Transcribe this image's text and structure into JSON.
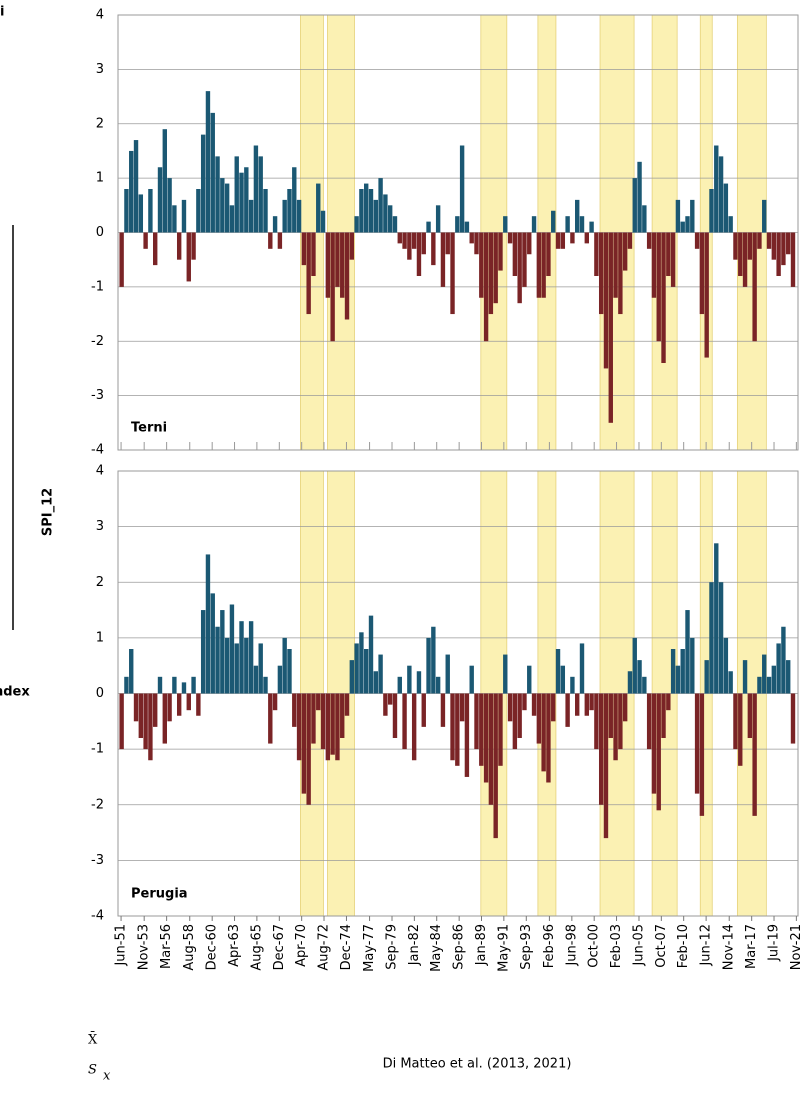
{
  "chart_data": [
    {
      "type": "bar",
      "title": "Terni",
      "pos_color": "#1b5873",
      "neg_color": "#7a2426",
      "shade_color": "#fbf1b3",
      "ylim": [
        -4,
        4
      ],
      "yticks": [
        -4,
        -3,
        -2,
        -1,
        0,
        1,
        2,
        3,
        4
      ],
      "xlim": [
        1951.1,
        2022.0
      ],
      "grid": true,
      "shaded_periods": [
        [
          1970.12,
          1972.52
        ],
        [
          1972.94,
          1975.76
        ],
        [
          1988.93,
          1991.64
        ],
        [
          1994.88,
          1996.76
        ],
        [
          2001.36,
          2004.91
        ],
        [
          2006.79,
          2009.4
        ],
        [
          2011.81,
          2013.06
        ],
        [
          2015.68,
          2018.7
        ]
      ],
      "x": [
        1951.5,
        1952.0,
        1952.5,
        1953.0,
        1953.5,
        1954.0,
        1954.5,
        1955.0,
        1955.5,
        1956.0,
        1956.5,
        1957.0,
        1957.5,
        1958.0,
        1958.5,
        1959.0,
        1959.5,
        1960.0,
        1960.5,
        1961.0,
        1961.5,
        1962.0,
        1962.5,
        1963.0,
        1963.5,
        1964.0,
        1964.5,
        1965.0,
        1965.5,
        1966.0,
        1966.5,
        1967.0,
        1967.5,
        1968.0,
        1968.5,
        1969.0,
        1969.5,
        1970.0,
        1970.5,
        1971.0,
        1971.5,
        1972.0,
        1972.5,
        1973.0,
        1973.5,
        1974.0,
        1974.5,
        1975.0,
        1975.5,
        1976.0,
        1976.5,
        1977.0,
        1977.5,
        1978.0,
        1978.5,
        1979.0,
        1979.5,
        1980.0,
        1980.5,
        1981.0,
        1981.5,
        1982.0,
        1982.5,
        1983.0,
        1983.5,
        1984.0,
        1984.5,
        1985.0,
        1985.5,
        1986.0,
        1986.5,
        1987.0,
        1987.5,
        1988.0,
        1988.5,
        1989.0,
        1989.5,
        1990.0,
        1990.5,
        1991.0,
        1991.5,
        1992.0,
        1992.5,
        1993.0,
        1993.5,
        1994.0,
        1994.5,
        1995.0,
        1995.5,
        1996.0,
        1996.5,
        1997.0,
        1997.5,
        1998.0,
        1998.5,
        1999.0,
        1999.5,
        2000.0,
        2000.5,
        2001.0,
        2001.5,
        2002.0,
        2002.5,
        2003.0,
        2003.5,
        2004.0,
        2004.5,
        2005.0,
        2005.5,
        2006.0,
        2006.5,
        2007.0,
        2007.5,
        2008.0,
        2008.5,
        2009.0,
        2009.5,
        2010.0,
        2010.5,
        2011.0,
        2011.5,
        2012.0,
        2012.5,
        2013.0,
        2013.5,
        2014.0,
        2014.5,
        2015.0,
        2015.5,
        2016.0,
        2016.5,
        2017.0,
        2017.5,
        2018.0,
        2018.5,
        2019.0,
        2019.5,
        2020.0,
        2020.5,
        2021.0,
        2021.5
      ],
      "values": [
        -1.0,
        0.8,
        1.5,
        1.7,
        0.7,
        -0.3,
        0.8,
        -0.6,
        1.2,
        1.9,
        1.0,
        0.5,
        -0.5,
        0.6,
        -0.9,
        -0.5,
        0.8,
        1.8,
        2.6,
        2.2,
        1.4,
        1.0,
        0.9,
        0.5,
        1.4,
        1.1,
        1.2,
        0.6,
        1.6,
        1.4,
        0.8,
        -0.3,
        0.3,
        -0.3,
        0.6,
        0.8,
        1.2,
        0.6,
        -0.6,
        -1.5,
        -0.8,
        0.9,
        0.4,
        -1.2,
        -2.0,
        -1.0,
        -1.2,
        -1.6,
        -0.5,
        0.3,
        0.8,
        0.9,
        0.8,
        0.6,
        1.0,
        0.7,
        0.5,
        0.3,
        -0.2,
        -0.3,
        -0.5,
        -0.3,
        -0.8,
        -0.4,
        0.2,
        -0.6,
        0.5,
        -1.0,
        -0.4,
        -1.5,
        0.3,
        1.6,
        0.2,
        -0.2,
        -0.4,
        -1.2,
        -2.0,
        -1.5,
        -1.3,
        -0.7,
        0.3,
        -0.2,
        -0.8,
        -1.3,
        -1.0,
        -0.4,
        0.3,
        -1.2,
        -1.2,
        -0.8,
        0.4,
        -0.3,
        -0.3,
        0.3,
        -0.2,
        0.6,
        0.3,
        -0.2,
        0.2,
        -0.8,
        -1.5,
        -2.5,
        -3.5,
        -1.2,
        -1.5,
        -0.7,
        -0.3,
        1.0,
        1.3,
        0.5,
        -0.3,
        -1.2,
        -2.0,
        -2.4,
        -0.8,
        -1.0,
        0.6,
        0.2,
        0.3,
        0.6,
        -0.3,
        -1.5,
        -2.3,
        0.8,
        1.6,
        1.4,
        0.9,
        0.3,
        -0.5,
        -0.8,
        -1.0,
        -0.5,
        -2.0,
        -0.3,
        0.6,
        -0.3,
        -0.5,
        -0.8,
        -0.6,
        -0.4,
        -1.0
      ]
    },
    {
      "type": "bar",
      "title": "Perugia",
      "pos_color": "#1b5873",
      "neg_color": "#7a2426",
      "shade_color": "#fbf1b3",
      "ylim": [
        -4,
        4
      ],
      "yticks": [
        -4,
        -3,
        -2,
        -1,
        0,
        1,
        2,
        3,
        4
      ],
      "xlim": [
        1951.1,
        2022.0
      ],
      "grid": true,
      "xticks": [
        {
          "value": 1951.42,
          "label": "Jun-51"
        },
        {
          "value": 1953.83,
          "label": "Nov-53"
        },
        {
          "value": 1956.17,
          "label": "Mar-56"
        },
        {
          "value": 1958.58,
          "label": "Aug-58"
        },
        {
          "value": 1960.92,
          "label": "Dec-60"
        },
        {
          "value": 1963.25,
          "label": "Apr-63"
        },
        {
          "value": 1965.58,
          "label": "Aug-65"
        },
        {
          "value": 1967.92,
          "label": "Dec-67"
        },
        {
          "value": 1970.25,
          "label": "Apr-70"
        },
        {
          "value": 1972.58,
          "label": "Aug-72"
        },
        {
          "value": 1974.92,
          "label": "Dec-74"
        },
        {
          "value": 1977.33,
          "label": "May-77"
        },
        {
          "value": 1979.67,
          "label": "Sep-79"
        },
        {
          "value": 1982.0,
          "label": "Jan-82"
        },
        {
          "value": 1984.33,
          "label": "May-84"
        },
        {
          "value": 1986.67,
          "label": "Sep-86"
        },
        {
          "value": 1989.0,
          "label": "Jan-89"
        },
        {
          "value": 1991.33,
          "label": "May-91"
        },
        {
          "value": 1993.67,
          "label": "Sep-93"
        },
        {
          "value": 1996.08,
          "label": "Feb-96"
        },
        {
          "value": 1998.42,
          "label": "Jun-98"
        },
        {
          "value": 2000.75,
          "label": "Oct-00"
        },
        {
          "value": 2003.08,
          "label": "Feb-03"
        },
        {
          "value": 2005.42,
          "label": "Jun-05"
        },
        {
          "value": 2007.75,
          "label": "Oct-07"
        },
        {
          "value": 2010.08,
          "label": "Feb-10"
        },
        {
          "value": 2012.42,
          "label": "Jun-12"
        },
        {
          "value": 2014.83,
          "label": "Nov-14"
        },
        {
          "value": 2017.17,
          "label": "Mar-17"
        },
        {
          "value": 2019.5,
          "label": "Jul-19"
        },
        {
          "value": 2021.83,
          "label": "Nov-21"
        }
      ],
      "shaded_periods": [
        [
          1970.12,
          1972.52
        ],
        [
          1972.94,
          1975.76
        ],
        [
          1988.93,
          1991.64
        ],
        [
          1994.88,
          1996.76
        ],
        [
          2001.36,
          2004.91
        ],
        [
          2006.79,
          2009.4
        ],
        [
          2011.81,
          2013.06
        ],
        [
          2015.68,
          2018.7
        ]
      ],
      "x": [
        1951.5,
        1952.0,
        1952.5,
        1953.0,
        1953.5,
        1954.0,
        1954.5,
        1955.0,
        1955.5,
        1956.0,
        1956.5,
        1957.0,
        1957.5,
        1958.0,
        1958.5,
        1959.0,
        1959.5,
        1960.0,
        1960.5,
        1961.0,
        1961.5,
        1962.0,
        1962.5,
        1963.0,
        1963.5,
        1964.0,
        1964.5,
        1965.0,
        1965.5,
        1966.0,
        1966.5,
        1967.0,
        1967.5,
        1968.0,
        1968.5,
        1969.0,
        1969.5,
        1970.0,
        1970.5,
        1971.0,
        1971.5,
        1972.0,
        1972.5,
        1973.0,
        1973.5,
        1974.0,
        1974.5,
        1975.0,
        1975.5,
        1976.0,
        1976.5,
        1977.0,
        1977.5,
        1978.0,
        1978.5,
        1979.0,
        1979.5,
        1980.0,
        1980.5,
        1981.0,
        1981.5,
        1982.0,
        1982.5,
        1983.0,
        1983.5,
        1984.0,
        1984.5,
        1985.0,
        1985.5,
        1986.0,
        1986.5,
        1987.0,
        1987.5,
        1988.0,
        1988.5,
        1989.0,
        1989.5,
        1990.0,
        1990.5,
        1991.0,
        1991.5,
        1992.0,
        1992.5,
        1993.0,
        1993.5,
        1994.0,
        1994.5,
        1995.0,
        1995.5,
        1996.0,
        1996.5,
        1997.0,
        1997.5,
        1998.0,
        1998.5,
        1999.0,
        1999.5,
        2000.0,
        2000.5,
        2001.0,
        2001.5,
        2002.0,
        2002.5,
        2003.0,
        2003.5,
        2004.0,
        2004.5,
        2005.0,
        2005.5,
        2006.0,
        2006.5,
        2007.0,
        2007.5,
        2008.0,
        2008.5,
        2009.0,
        2009.5,
        2010.0,
        2010.5,
        2011.0,
        2011.5,
        2012.0,
        2012.5,
        2013.0,
        2013.5,
        2014.0,
        2014.5,
        2015.0,
        2015.5,
        2016.0,
        2016.5,
        2017.0,
        2017.5,
        2018.0,
        2018.5,
        2019.0,
        2019.5,
        2020.0,
        2020.5,
        2021.0,
        2021.5
      ],
      "values": [
        -1.0,
        0.3,
        0.8,
        -0.5,
        -0.8,
        -1.0,
        -1.2,
        -0.6,
        0.3,
        -0.9,
        -0.5,
        0.3,
        -0.4,
        0.2,
        -0.3,
        0.3,
        -0.4,
        1.5,
        2.5,
        1.8,
        1.2,
        1.5,
        1.0,
        1.6,
        0.9,
        1.3,
        1.0,
        1.3,
        0.5,
        0.9,
        0.3,
        -0.9,
        -0.3,
        0.5,
        1.0,
        0.8,
        -0.6,
        -1.2,
        -1.8,
        -2.0,
        -0.9,
        -0.3,
        -1.0,
        -1.2,
        -1.1,
        -1.2,
        -0.8,
        -0.4,
        0.6,
        0.9,
        1.1,
        0.8,
        1.4,
        0.4,
        0.7,
        -0.4,
        -0.2,
        -0.8,
        0.3,
        -1.0,
        0.5,
        -1.2,
        0.4,
        -0.6,
        1.0,
        1.2,
        0.3,
        -0.6,
        0.7,
        -1.2,
        -1.3,
        -0.5,
        -1.5,
        0.5,
        -1.0,
        -1.3,
        -1.6,
        -2.0,
        -2.6,
        -1.3,
        0.7,
        -0.5,
        -1.0,
        -0.8,
        -0.3,
        0.5,
        -0.4,
        -0.9,
        -1.4,
        -1.6,
        -0.5,
        0.8,
        0.5,
        -0.6,
        0.3,
        -0.4,
        0.9,
        -0.4,
        -0.3,
        -1.0,
        -2.0,
        -2.6,
        -0.8,
        -1.2,
        -1.0,
        -0.5,
        0.4,
        1.0,
        0.6,
        0.3,
        -1.0,
        -1.8,
        -2.1,
        -0.8,
        -0.3,
        0.8,
        0.5,
        0.8,
        1.5,
        1.0,
        -1.8,
        -2.2,
        0.6,
        2.0,
        2.7,
        2.0,
        1.0,
        0.4,
        -1.0,
        -1.3,
        0.6,
        -0.8,
        -2.2,
        0.3,
        0.7,
        0.3,
        0.5,
        0.9,
        1.2,
        0.6,
        -0.9
      ]
    }
  ],
  "y_label": "SPI_12",
  "caption": "Di Matteo et al. (2013, 2021)",
  "cropped_texts": [
    "i",
    "ndex"
  ],
  "formula": {
    "mean": "X̄",
    "sd": "S",
    "sd_sub": "x"
  }
}
